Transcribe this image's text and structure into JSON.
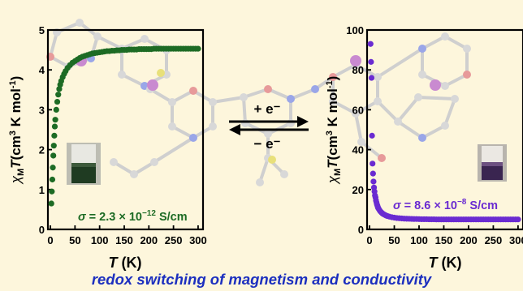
{
  "caption": "redox switching of magnetism and conductivity",
  "arrows": {
    "forward_label": "+ e⁻",
    "reverse_label": "− e⁻"
  },
  "colors": {
    "left_series": "#1d6b24",
    "right_series": "#6a2bd1",
    "caption": "#1c2fbf",
    "background": "#fdf6dc",
    "molecule": "#c9c9c9"
  },
  "chart_data": [
    {
      "type": "scatter",
      "ylabel_parts": {
        "chi": "χ",
        "sub_m": "M",
        "t": "T",
        "units_a": "(cm",
        "sup3": "3",
        "units_b": " K mol",
        "sup_neg1": "-1",
        "close": ")"
      },
      "xlabel_parts": {
        "t": "T",
        "unit": " (K)"
      },
      "x_ticks": [
        0,
        50,
        100,
        150,
        200,
        250,
        300
      ],
      "y_ticks": [
        0,
        1,
        2,
        3,
        4,
        5
      ],
      "xlim": [
        -5,
        310
      ],
      "ylim": [
        0,
        5
      ],
      "annotation_parts": {
        "sigma": "σ",
        "value": " = 2.3 × 10",
        "exp": "−12",
        "unit": " S/cm"
      },
      "color": "#1d6b24",
      "inset": "vial (dark green solution)",
      "x": [
        2,
        3,
        4,
        5,
        6,
        7,
        8,
        9,
        10,
        12,
        14,
        16,
        18,
        20,
        22,
        25,
        28,
        31,
        35,
        40,
        45,
        50,
        55,
        60,
        65,
        70,
        75,
        80,
        85,
        90,
        95,
        100,
        105,
        110,
        115,
        120,
        125,
        130,
        135,
        140,
        145,
        150,
        155,
        160,
        165,
        170,
        175,
        180,
        185,
        190,
        195,
        200,
        205,
        210,
        215,
        220,
        225,
        230,
        235,
        240,
        245,
        250,
        255,
        260,
        265,
        270,
        275,
        280,
        285,
        290,
        295,
        300
      ],
      "y": [
        0.65,
        0.95,
        1.25,
        1.55,
        1.85,
        2.1,
        2.35,
        2.58,
        2.75,
        3.0,
        3.2,
        3.38,
        3.52,
        3.63,
        3.72,
        3.82,
        3.9,
        3.97,
        4.05,
        4.12,
        4.18,
        4.22,
        4.26,
        4.3,
        4.33,
        4.35,
        4.37,
        4.39,
        4.41,
        4.42,
        4.43,
        4.44,
        4.45,
        4.46,
        4.47,
        4.47,
        4.48,
        4.48,
        4.49,
        4.49,
        4.5,
        4.5,
        4.5,
        4.51,
        4.51,
        4.51,
        4.51,
        4.52,
        4.52,
        4.52,
        4.52,
        4.52,
        4.52,
        4.53,
        4.53,
        4.53,
        4.53,
        4.53,
        4.53,
        4.53,
        4.53,
        4.53,
        4.53,
        4.53,
        4.53,
        4.53,
        4.53,
        4.53,
        4.53,
        4.53,
        4.53,
        4.53
      ]
    },
    {
      "type": "scatter",
      "ylabel_parts": {
        "chi": "χ",
        "sub_m": "M",
        "t": "T",
        "units_a": "(cm",
        "sup3": "3",
        "units_b": " K mol",
        "sup_neg1": "-1",
        "close": ")"
      },
      "xlabel_parts": {
        "t": "T",
        "unit": " (K)"
      },
      "x_ticks": [
        0,
        50,
        100,
        150,
        200,
        250,
        300
      ],
      "y_ticks": [
        0,
        20,
        40,
        60,
        80,
        100
      ],
      "xlim": [
        -5,
        310
      ],
      "ylim": [
        0,
        100
      ],
      "annotation_parts": {
        "sigma": "σ",
        "value": " = 8.6 × 10",
        "exp": "−8",
        "unit": " S/cm"
      },
      "color": "#6a2bd1",
      "inset": "vial (purple solution)",
      "x": [
        2,
        3,
        4,
        5,
        6,
        7,
        8,
        9,
        10,
        11,
        12,
        13,
        14,
        15,
        16,
        17,
        18,
        20,
        22,
        24,
        26,
        28,
        30,
        33,
        36,
        40,
        45,
        50,
        55,
        60,
        65,
        70,
        75,
        80,
        85,
        90,
        95,
        100,
        105,
        110,
        115,
        120,
        125,
        130,
        135,
        140,
        145,
        150,
        155,
        160,
        165,
        170,
        175,
        180,
        185,
        190,
        195,
        200,
        205,
        210,
        215,
        220,
        225,
        230,
        235,
        240,
        245,
        250,
        255,
        260,
        265,
        270,
        275,
        280,
        285,
        290,
        295,
        300
      ],
      "y": [
        93,
        84,
        76,
        47,
        33,
        28,
        24,
        21,
        19,
        17,
        16,
        14.5,
        13.5,
        12.5,
        11.8,
        11,
        10.5,
        9.7,
        9,
        8.5,
        8,
        7.7,
        7.4,
        7,
        6.7,
        6.4,
        6.1,
        5.9,
        5.7,
        5.6,
        5.5,
        5.4,
        5.35,
        5.3,
        5.25,
        5.2,
        5.2,
        5.15,
        5.1,
        5.1,
        5.1,
        5.05,
        5.05,
        5.05,
        5,
        5,
        5,
        5,
        5,
        5,
        5,
        5,
        5,
        5,
        5,
        5,
        5,
        5,
        5,
        5,
        5,
        5,
        5,
        5,
        5,
        5,
        5,
        5,
        5,
        5,
        5,
        5,
        5,
        5,
        5,
        5,
        5,
        5
      ]
    }
  ]
}
